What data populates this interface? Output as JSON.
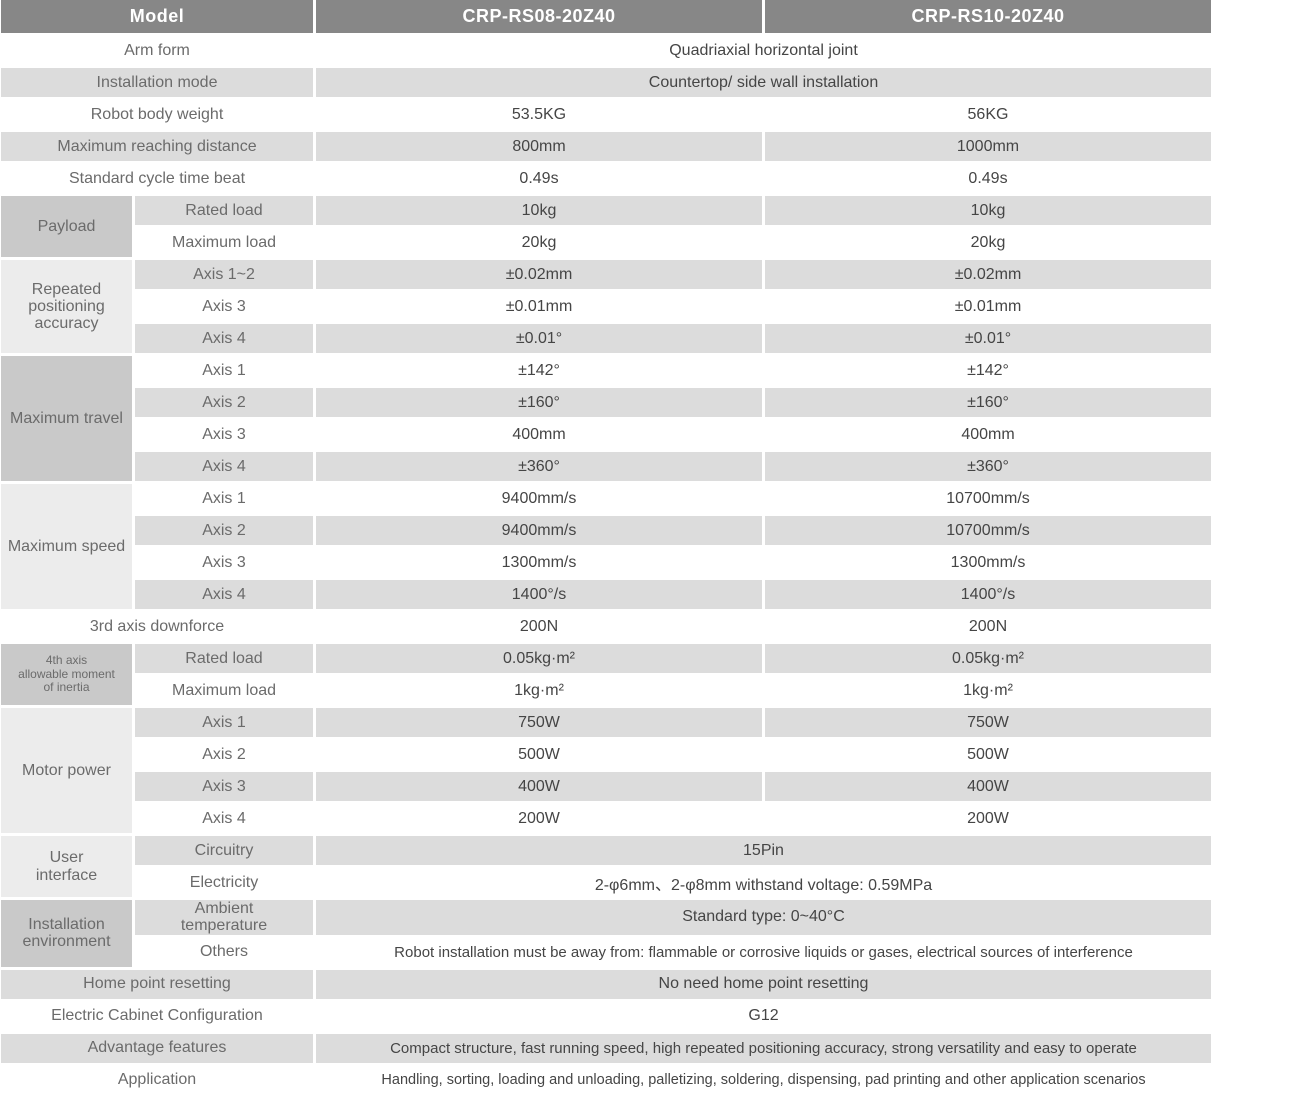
{
  "colors": {
    "header_bg": "#878787",
    "header_text": "#ffffff",
    "row_gray": "#dcdcdc",
    "group_cell_dark": "#c9c9c9",
    "group_cell_light": "#ececec",
    "label_text": "#6b6b6b",
    "value_text": "#454545"
  },
  "table": {
    "header": {
      "model_label": "Model",
      "models": [
        "CRP-RS08-20Z40",
        "CRP-RS10-20Z40"
      ]
    },
    "rows": [
      {
        "label": "Arm form",
        "shade": "w",
        "value": "Quadriaxial horizontal joint"
      },
      {
        "label": "Installation mode",
        "shade": "g",
        "value": "Countertop/ side wall installation"
      },
      {
        "label": "Robot body weight",
        "shade": "w",
        "values": [
          "53.5KG",
          "56KG"
        ]
      },
      {
        "label": "Maximum reaching distance",
        "shade": "g",
        "values": [
          "800mm",
          "1000mm"
        ]
      },
      {
        "label": "Standard cycle time beat",
        "shade": "w",
        "values": [
          "0.49s",
          "0.49s"
        ]
      },
      {
        "group": {
          "label": "Payload",
          "rowspan": 2,
          "tone": "d"
        },
        "sub": true,
        "label": "Rated load",
        "shade": "g",
        "values": [
          "10kg",
          "10kg"
        ]
      },
      {
        "sub": true,
        "label": "Maximum load",
        "shade": "w",
        "values": [
          "20kg",
          "20kg"
        ]
      },
      {
        "group": {
          "label": "Repeated\npositioning\naccuracy",
          "rowspan": 3,
          "tone": "l"
        },
        "sub": true,
        "label": "Axis 1~2",
        "shade": "g",
        "values": [
          "±0.02mm",
          "±0.02mm"
        ]
      },
      {
        "sub": true,
        "label": "Axis 3",
        "shade": "w",
        "values": [
          "±0.01mm",
          "±0.01mm"
        ]
      },
      {
        "sub": true,
        "label": "Axis 4",
        "shade": "g",
        "values": [
          "±0.01°",
          "±0.01°"
        ]
      },
      {
        "group": {
          "label": "Maximum travel",
          "rowspan": 4,
          "tone": "d"
        },
        "sub": true,
        "label": "Axis 1",
        "shade": "w",
        "values": [
          "±142°",
          "±142°"
        ]
      },
      {
        "sub": true,
        "label": "Axis 2",
        "shade": "g",
        "values": [
          "±160°",
          "±160°"
        ]
      },
      {
        "sub": true,
        "label": "Axis 3",
        "shade": "w",
        "values": [
          "400mm",
          "400mm"
        ]
      },
      {
        "sub": true,
        "label": "Axis 4",
        "shade": "g",
        "values": [
          "±360°",
          "±360°"
        ]
      },
      {
        "group": {
          "label": "Maximum speed",
          "rowspan": 4,
          "tone": "l"
        },
        "sub": true,
        "label": "Axis 1",
        "shade": "w",
        "values": [
          "9400mm/s",
          "10700mm/s"
        ]
      },
      {
        "sub": true,
        "label": "Axis 2",
        "shade": "g",
        "values": [
          "9400mm/s",
          "10700mm/s"
        ]
      },
      {
        "sub": true,
        "label": "Axis 3",
        "shade": "w",
        "values": [
          "1300mm/s",
          "1300mm/s"
        ]
      },
      {
        "sub": true,
        "label": "Axis 4",
        "shade": "g",
        "values": [
          "1400°/s",
          "1400°/s"
        ]
      },
      {
        "label": "3rd axis downforce",
        "shade": "w",
        "values": [
          "200N",
          "200N"
        ]
      },
      {
        "group": {
          "label": "4th axis\nallowable moment\nof inertia",
          "rowspan": 2,
          "tone": "d",
          "small": true
        },
        "sub": true,
        "label": "Rated load",
        "shade": "g",
        "values": [
          "0.05kg·m²",
          "0.05kg·m²"
        ]
      },
      {
        "sub": true,
        "label": "Maximum load",
        "shade": "w",
        "values": [
          "1kg·m²",
          "1kg·m²"
        ]
      },
      {
        "group": {
          "label": "Motor power",
          "rowspan": 4,
          "tone": "l"
        },
        "sub": true,
        "label": "Axis 1",
        "shade": "g",
        "values": [
          "750W",
          "750W"
        ]
      },
      {
        "sub": true,
        "label": "Axis 2",
        "shade": "w",
        "values": [
          "500W",
          "500W"
        ]
      },
      {
        "sub": true,
        "label": "Axis 3",
        "shade": "g",
        "values": [
          "400W",
          "400W"
        ]
      },
      {
        "sub": true,
        "label": "Axis 4",
        "shade": "w",
        "values": [
          "200W",
          "200W"
        ]
      },
      {
        "group": {
          "label": "User\ninterface",
          "rowspan": 2,
          "tone": "l"
        },
        "sub": true,
        "label": "Circuitry",
        "shade": "g",
        "value": "15Pin"
      },
      {
        "sub": true,
        "label": "Electricity",
        "shade": "w",
        "value": "2-φ6mm、2-φ8mm withstand voltage: 0.59MPa"
      },
      {
        "group": {
          "label": "Installation\nenvironment",
          "rowspan": 2,
          "tone": "d"
        },
        "sub": true,
        "label": "Ambient\ntemperature",
        "pre_label": true,
        "shade": "g",
        "value": "Standard type: 0~40°C"
      },
      {
        "sub": true,
        "label": "Others",
        "shade": "w",
        "value": "Robot installation must be away from: flammable or corrosive liquids or gases, electrical sources of interference",
        "value_size": "sz15"
      },
      {
        "label": "Home point resetting",
        "shade": "g",
        "value": "No need home point resetting"
      },
      {
        "label": "Electric Cabinet Configuration",
        "shade": "w",
        "value": "G12"
      },
      {
        "label": "Advantage features",
        "shade": "g",
        "value": "Compact structure, fast running speed, high repeated positioning accuracy, strong versatility and easy to operate",
        "value_size": "sz15"
      },
      {
        "label": "Application",
        "shade": "w",
        "value": "Handling, sorting, loading and unloading, palletizing, soldering, dispensing, pad printing and other application scenarios",
        "value_size": "sz14"
      },
      {
        "label": "",
        "shade": "g",
        "value": ""
      }
    ]
  }
}
